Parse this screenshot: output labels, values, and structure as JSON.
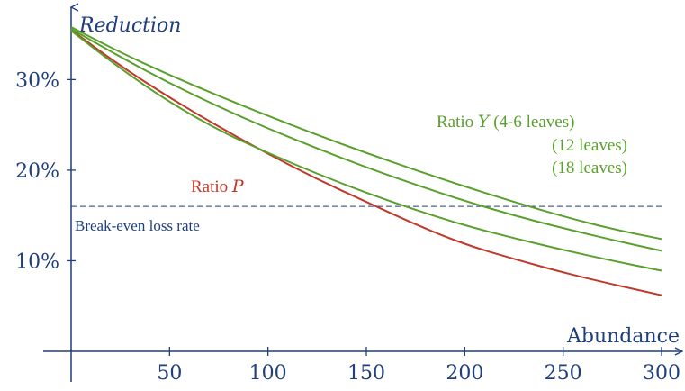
{
  "colors": {
    "axis": "#1f3f7f",
    "green": "#5aa02c",
    "red": "#c0392b",
    "dashed": "#1f3f7f"
  },
  "chart_data": {
    "type": "line",
    "ylabel": "Reduction",
    "xlabel": "Abundance",
    "xlim": [
      0,
      300
    ],
    "ylim": [
      0,
      37
    ],
    "xticks": [
      50,
      100,
      150,
      200,
      250,
      300
    ],
    "xtick_labels": [
      "50",
      "100",
      "150",
      "200",
      "250",
      "300"
    ],
    "yticks": [
      10,
      20,
      30
    ],
    "ytick_labels": [
      "10%",
      "20%",
      "30%"
    ],
    "break_even": {
      "y": 16,
      "label": "Break-even loss rate"
    },
    "series": [
      {
        "name": "Ratio P",
        "label_prefix": "Ratio",
        "label_symbol": "P",
        "color": "red",
        "x": [
          0,
          25,
          50,
          75,
          100,
          125,
          150,
          175,
          200,
          225,
          250,
          275,
          300
        ],
        "y": [
          35.5,
          31.5,
          28.0,
          24.8,
          21.8,
          19.0,
          16.5,
          14.0,
          11.8,
          10.2,
          8.7,
          7.4,
          6.2
        ]
      },
      {
        "name": "Ratio Y (4-6 leaves)",
        "label_prefix": "Ratio",
        "label_symbol": "Y",
        "label_suffix": "(4-6 leaves)",
        "color": "green",
        "x": [
          0,
          25,
          50,
          75,
          100,
          125,
          150,
          175,
          200,
          225,
          250,
          275,
          300
        ],
        "y": [
          35.8,
          33.0,
          30.5,
          28.2,
          26.0,
          23.9,
          21.9,
          20.0,
          18.2,
          16.5,
          14.9,
          13.5,
          12.4
        ]
      },
      {
        "name": "(12 leaves)",
        "label_suffix": "(12 leaves)",
        "color": "green",
        "x": [
          0,
          25,
          50,
          75,
          100,
          125,
          150,
          175,
          200,
          225,
          250,
          275,
          300
        ],
        "y": [
          35.6,
          32.5,
          29.6,
          27.0,
          24.6,
          22.4,
          20.3,
          18.4,
          16.6,
          15.0,
          13.6,
          12.3,
          11.1
        ]
      },
      {
        "name": "(18 leaves)",
        "label_suffix": "(18 leaves)",
        "color": "green",
        "x": [
          0,
          25,
          50,
          75,
          100,
          125,
          150,
          175,
          200,
          225,
          250,
          275,
          300
        ],
        "y": [
          35.4,
          31.2,
          27.5,
          24.4,
          21.9,
          19.6,
          17.5,
          15.6,
          13.9,
          12.5,
          11.2,
          10.0,
          8.9
        ]
      }
    ]
  }
}
